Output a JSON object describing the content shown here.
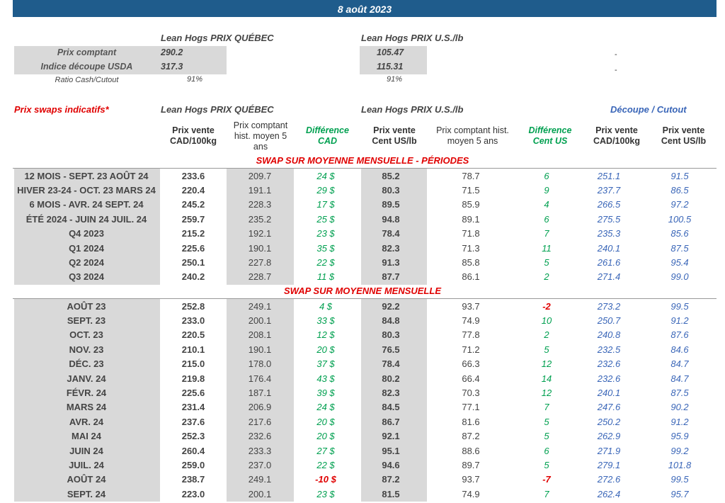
{
  "banner": {
    "date": "8 août 2023"
  },
  "top": {
    "quebec_header": "Lean Hogs PRIX QUÉBEC",
    "us_header": "Lean Hogs PRIX U.S./lb",
    "rows": [
      {
        "label": "Prix comptant",
        "quebec": "290.2",
        "us": "105.47",
        "extra": "-"
      },
      {
        "label": "Indice découpe USDA",
        "quebec": "317.3",
        "us": "115.31",
        "extra": "-"
      }
    ],
    "ratio": {
      "label": "Ratio Cash/Cutout",
      "quebec": "91%",
      "us": "91%"
    }
  },
  "swaps": {
    "title": "Prix swaps indicatifs*",
    "quebec_header": "Lean Hogs PRIX QUÉBEC",
    "us_header": "Lean Hogs PRIX U.S./lb",
    "cutout_header": "Découpe / Cutout",
    "columns": {
      "cad_price": "Prix vente CAD/100kg",
      "hist_cad": "Prix comptant hist. moyen 5 ans",
      "diff_cad": "Différence CAD",
      "us_price": "Prix vente Cent US/lb",
      "hist_us": "Prix comptant hist. moyen 5 ans",
      "diff_us": "Différence Cent US",
      "cut_cad": "Prix vente CAD/100kg",
      "cut_us": "Prix vente Cent US/lb"
    }
  },
  "section_periods": {
    "title": "SWAP SUR MOYENNE MENSUELLE - PÉRIODES",
    "rows": [
      [
        "12 MOIS - SEPT. 23 AOÛT 24",
        "233.6",
        "209.7",
        "24 $",
        "85.2",
        "78.7",
        "6",
        "251.1",
        "91.5"
      ],
      [
        "HIVER 23-24 - OCT. 23 MARS 24",
        "220.4",
        "191.1",
        "29 $",
        "80.3",
        "71.5",
        "9",
        "237.7",
        "86.5"
      ],
      [
        "6 MOIS - AVR. 24 SEPT. 24",
        "245.2",
        "228.3",
        "17 $",
        "89.5",
        "85.9",
        "4",
        "266.5",
        "97.2"
      ],
      [
        "ÉTÉ 2024 - JUIN 24 JUIL. 24",
        "259.7",
        "235.2",
        "25 $",
        "94.8",
        "89.1",
        "6",
        "275.5",
        "100.5"
      ],
      [
        "Q4 2023",
        "215.2",
        "192.1",
        "23 $",
        "78.4",
        "71.8",
        "7",
        "235.3",
        "85.6"
      ],
      [
        "Q1 2024",
        "225.6",
        "190.1",
        "35 $",
        "82.3",
        "71.3",
        "11",
        "240.1",
        "87.5"
      ],
      [
        "Q2 2024",
        "250.1",
        "227.8",
        "22 $",
        "91.3",
        "85.8",
        "5",
        "261.6",
        "95.4"
      ],
      [
        "Q3 2024",
        "240.2",
        "228.7",
        "11 $",
        "87.7",
        "86.1",
        "2",
        "271.4",
        "99.0"
      ]
    ]
  },
  "section_monthly": {
    "title": "SWAP SUR MOYENNE MENSUELLE",
    "rows": [
      [
        "AOÛT 23",
        "252.8",
        "249.1",
        "4 $",
        "92.2",
        "93.7",
        "-2",
        "273.2",
        "99.5"
      ],
      [
        "SEPT. 23",
        "233.0",
        "200.1",
        "33 $",
        "84.8",
        "74.9",
        "10",
        "250.7",
        "91.2"
      ],
      [
        "OCT. 23",
        "220.5",
        "208.1",
        "12 $",
        "80.3",
        "77.8",
        "2",
        "240.8",
        "87.6"
      ],
      [
        "NOV. 23",
        "210.1",
        "190.1",
        "20 $",
        "76.5",
        "71.2",
        "5",
        "232.5",
        "84.6"
      ],
      [
        "DÉC. 23",
        "215.0",
        "178.0",
        "37 $",
        "78.4",
        "66.3",
        "12",
        "232.6",
        "84.7"
      ],
      [
        "JANV. 24",
        "219.8",
        "176.4",
        "43 $",
        "80.2",
        "66.4",
        "14",
        "232.6",
        "84.7"
      ],
      [
        "FÉVR. 24",
        "225.6",
        "187.1",
        "39 $",
        "82.3",
        "70.3",
        "12",
        "240.1",
        "87.5"
      ],
      [
        "MARS 24",
        "231.4",
        "206.9",
        "24 $",
        "84.5",
        "77.1",
        "7",
        "247.6",
        "90.2"
      ],
      [
        "AVR. 24",
        "237.6",
        "217.6",
        "20 $",
        "86.7",
        "81.6",
        "5",
        "250.2",
        "91.2"
      ],
      [
        "MAI 24",
        "252.3",
        "232.6",
        "20 $",
        "92.1",
        "87.2",
        "5",
        "262.9",
        "95.9"
      ],
      [
        "JUIN 24",
        "260.4",
        "233.3",
        "27 $",
        "95.1",
        "88.6",
        "6",
        "271.9",
        "99.2"
      ],
      [
        "JUIL. 24",
        "259.0",
        "237.0",
        "22 $",
        "94.6",
        "89.7",
        "5",
        "279.1",
        "101.8"
      ],
      [
        "AOÛT 24",
        "238.7",
        "249.1",
        "-10 $",
        "87.2",
        "93.7",
        "-7",
        "272.6",
        "99.5"
      ],
      [
        "SEPT. 24",
        "223.0",
        "200.1",
        "23 $",
        "81.5",
        "74.9",
        "7",
        "262.4",
        "95.7"
      ]
    ]
  }
}
